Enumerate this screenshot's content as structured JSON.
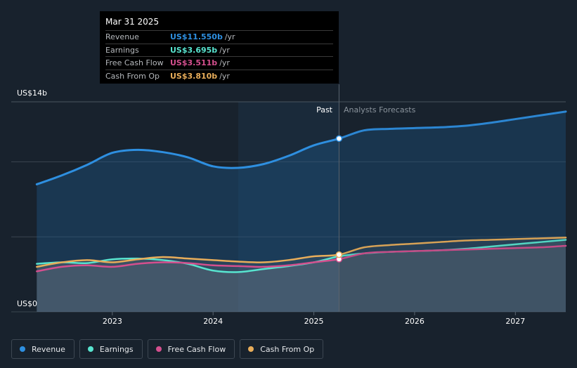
{
  "chart_data": {
    "type": "area",
    "y_axis_labels": {
      "top": "US$14b",
      "bottom": "US$0"
    },
    "ylim": [
      0,
      14
    ],
    "xlim": [
      2022.22,
      2027.5
    ],
    "x_ticks": [
      {
        "value": 2023,
        "label": "2023"
      },
      {
        "value": 2024,
        "label": "2024"
      },
      {
        "value": 2025,
        "label": "2025"
      },
      {
        "value": 2026,
        "label": "2026"
      },
      {
        "value": 2027,
        "label": "2027"
      }
    ],
    "grid": true,
    "past_label": "Past",
    "forecast_label": "Analysts Forecasts",
    "divider_x": 2025.25,
    "shade_start_x": 2024.25,
    "series": [
      {
        "name": "Revenue",
        "color": "#2e8fe0",
        "points": [
          [
            2022.25,
            8.5
          ],
          [
            2022.5,
            9.1
          ],
          [
            2022.75,
            9.8
          ],
          [
            2023.0,
            10.6
          ],
          [
            2023.25,
            10.8
          ],
          [
            2023.5,
            10.65
          ],
          [
            2023.75,
            10.3
          ],
          [
            2024.0,
            9.7
          ],
          [
            2024.25,
            9.6
          ],
          [
            2024.5,
            9.85
          ],
          [
            2024.75,
            10.4
          ],
          [
            2025.0,
            11.1
          ],
          [
            2025.25,
            11.55
          ],
          [
            2025.5,
            12.1
          ],
          [
            2025.75,
            12.2
          ],
          [
            2026.0,
            12.25
          ],
          [
            2026.25,
            12.3
          ],
          [
            2026.5,
            12.4
          ],
          [
            2026.75,
            12.6
          ],
          [
            2027.0,
            12.85
          ],
          [
            2027.25,
            13.1
          ],
          [
            2027.5,
            13.35
          ]
        ]
      },
      {
        "name": "Earnings",
        "color": "#58e4cf",
        "points": [
          [
            2022.25,
            3.2
          ],
          [
            2022.5,
            3.3
          ],
          [
            2022.75,
            3.25
          ],
          [
            2023.0,
            3.5
          ],
          [
            2023.25,
            3.55
          ],
          [
            2023.5,
            3.45
          ],
          [
            2023.75,
            3.2
          ],
          [
            2024.0,
            2.75
          ],
          [
            2024.25,
            2.65
          ],
          [
            2024.5,
            2.85
          ],
          [
            2024.75,
            3.05
          ],
          [
            2025.0,
            3.3
          ],
          [
            2025.25,
            3.7
          ],
          [
            2025.5,
            3.9
          ],
          [
            2025.75,
            4.0
          ],
          [
            2026.0,
            4.05
          ],
          [
            2026.25,
            4.1
          ],
          [
            2026.5,
            4.2
          ],
          [
            2026.75,
            4.35
          ],
          [
            2027.0,
            4.5
          ],
          [
            2027.25,
            4.65
          ],
          [
            2027.5,
            4.8
          ]
        ]
      },
      {
        "name": "Free Cash Flow",
        "color": "#d44f8e",
        "points": [
          [
            2022.25,
            2.7
          ],
          [
            2022.5,
            3.0
          ],
          [
            2022.75,
            3.1
          ],
          [
            2023.0,
            3.0
          ],
          [
            2023.25,
            3.2
          ],
          [
            2023.5,
            3.3
          ],
          [
            2023.75,
            3.25
          ],
          [
            2024.0,
            3.1
          ],
          [
            2024.25,
            3.05
          ],
          [
            2024.5,
            3.0
          ],
          [
            2024.75,
            3.1
          ],
          [
            2025.0,
            3.3
          ],
          [
            2025.25,
            3.51
          ],
          [
            2025.5,
            3.9
          ],
          [
            2025.75,
            4.0
          ],
          [
            2026.0,
            4.05
          ],
          [
            2026.25,
            4.1
          ],
          [
            2026.5,
            4.15
          ],
          [
            2026.75,
            4.2
          ],
          [
            2027.0,
            4.25
          ],
          [
            2027.25,
            4.3
          ],
          [
            2027.5,
            4.4
          ]
        ]
      },
      {
        "name": "Cash From Op",
        "color": "#e8ad5a",
        "points": [
          [
            2022.25,
            3.0
          ],
          [
            2022.5,
            3.3
          ],
          [
            2022.75,
            3.45
          ],
          [
            2023.0,
            3.3
          ],
          [
            2023.25,
            3.5
          ],
          [
            2023.5,
            3.65
          ],
          [
            2023.75,
            3.55
          ],
          [
            2024.0,
            3.45
          ],
          [
            2024.25,
            3.35
          ],
          [
            2024.5,
            3.3
          ],
          [
            2024.75,
            3.45
          ],
          [
            2025.0,
            3.7
          ],
          [
            2025.25,
            3.81
          ],
          [
            2025.5,
            4.3
          ],
          [
            2025.75,
            4.45
          ],
          [
            2026.0,
            4.55
          ],
          [
            2026.25,
            4.65
          ],
          [
            2026.5,
            4.75
          ],
          [
            2026.75,
            4.8
          ],
          [
            2027.0,
            4.85
          ],
          [
            2027.25,
            4.9
          ],
          [
            2027.5,
            4.95
          ]
        ]
      }
    ]
  },
  "tooltip": {
    "date": "Mar 31 2025",
    "rows": [
      {
        "label": "Revenue",
        "value": "US$11.550b",
        "unit": "/yr",
        "color": "#2e8fe0"
      },
      {
        "label": "Earnings",
        "value": "US$3.695b",
        "unit": "/yr",
        "color": "#58e4cf"
      },
      {
        "label": "Free Cash Flow",
        "value": "US$3.511b",
        "unit": "/yr",
        "color": "#d44f8e"
      },
      {
        "label": "Cash From Op",
        "value": "US$3.810b",
        "unit": "/yr",
        "color": "#e8ad5a"
      }
    ]
  },
  "legend": [
    {
      "label": "Revenue",
      "color": "#2e8fe0"
    },
    {
      "label": "Earnings",
      "color": "#58e4cf"
    },
    {
      "label": "Free Cash Flow",
      "color": "#d44f8e"
    },
    {
      "label": "Cash From Op",
      "color": "#e8ad5a"
    }
  ]
}
